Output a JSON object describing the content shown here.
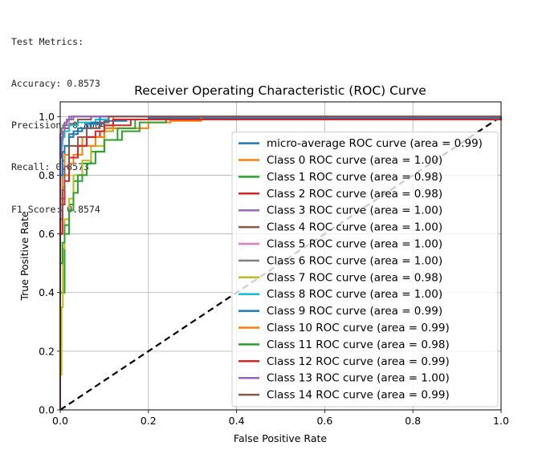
{
  "metrics": {
    "lines": [
      "Test Metrics:",
      "Accuracy: 0.8573",
      "Precision: 0.8604",
      "Recall: 0.8573",
      "F1 Score: 0.8574"
    ]
  },
  "chart_data": {
    "type": "line",
    "title": "Receiver Operating Characteristic (ROC) Curve",
    "xlabel": "False Positive Rate",
    "ylabel": "True Positive Rate",
    "xlim": [
      0.0,
      1.0
    ],
    "ylim": [
      0.0,
      1.05
    ],
    "xticks": [
      "0.0",
      "0.2",
      "0.4",
      "0.6",
      "0.8",
      "1.0"
    ],
    "yticks": [
      "0.0",
      "0.2",
      "0.4",
      "0.6",
      "0.8",
      "1.0"
    ],
    "grid": true,
    "legend_position": "lower-right",
    "diagonal": {
      "style": "dashed",
      "color": "#000000",
      "x": [
        0,
        1
      ],
      "y": [
        0,
        1
      ]
    },
    "series": [
      {
        "name": "micro-average ROC curve (area = 0.99)",
        "color": "#1f77b4",
        "x": [
          0,
          0,
          0.005,
          0.01,
          0.02,
          0.04,
          0.06,
          0.1,
          0.15,
          0.2,
          1.0
        ],
        "y": [
          0,
          0.68,
          0.85,
          0.9,
          0.94,
          0.96,
          0.975,
          0.985,
          0.99,
          0.995,
          1.0
        ]
      },
      {
        "name": "Class 0 ROC curve (area = 1.00)",
        "color": "#ff7f0e",
        "x": [
          0,
          0,
          0.005,
          0.01,
          0.02,
          0.05,
          0.1,
          0.2,
          0.25,
          0.32,
          0.32,
          1.0
        ],
        "y": [
          0,
          0.72,
          0.8,
          0.87,
          0.9,
          0.93,
          0.96,
          0.98,
          0.985,
          0.985,
          1.0,
          1.0
        ]
      },
      {
        "name": "Class 1 ROC curve (area = 0.98)",
        "color": "#2ca02c",
        "x": [
          0,
          0,
          0.01,
          0.02,
          0.03,
          0.05,
          0.07,
          0.1,
          0.14,
          0.18,
          0.24,
          1.0
        ],
        "y": [
          0,
          0.4,
          0.6,
          0.7,
          0.78,
          0.84,
          0.88,
          0.92,
          0.95,
          0.98,
          0.99,
          1.0
        ]
      },
      {
        "name": "Class 2 ROC curve (area = 0.98)",
        "color": "#d62728",
        "x": [
          0,
          0,
          0.005,
          0.01,
          0.02,
          0.04,
          0.06,
          0.09,
          0.12,
          0.16,
          1.0
        ],
        "y": [
          0,
          0.6,
          0.72,
          0.8,
          0.86,
          0.9,
          0.93,
          0.95,
          0.97,
          0.99,
          1.0
        ]
      },
      {
        "name": "Class 3 ROC curve (area = 1.00)",
        "color": "#9467bd",
        "x": [
          0,
          0,
          0.003,
          0.006,
          0.01,
          0.015,
          0.02,
          1.0
        ],
        "y": [
          0,
          0.88,
          0.92,
          0.95,
          0.97,
          0.985,
          1.0,
          1.0
        ]
      },
      {
        "name": "Class 4 ROC curve (area = 1.00)",
        "color": "#8c564b",
        "x": [
          0,
          0,
          0.003,
          0.006,
          0.01,
          0.02,
          0.04,
          0.07,
          1.0
        ],
        "y": [
          0,
          0.86,
          0.92,
          0.94,
          0.96,
          0.975,
          0.99,
          1.0,
          1.0
        ]
      },
      {
        "name": "Class 5 ROC curve (area = 1.00)",
        "color": "#e377c2",
        "x": [
          0,
          0,
          0.003,
          0.006,
          0.01,
          0.02,
          0.03,
          1.0
        ],
        "y": [
          0,
          0.9,
          0.93,
          0.95,
          0.97,
          0.99,
          1.0,
          1.0
        ]
      },
      {
        "name": "Class 6 ROC curve (area = 1.00)",
        "color": "#7f7f7f",
        "x": [
          0,
          0,
          0.003,
          0.006,
          0.01,
          0.015,
          0.03,
          1.0
        ],
        "y": [
          0,
          0.94,
          0.96,
          0.97,
          0.98,
          0.99,
          1.0,
          1.0
        ]
      },
      {
        "name": "Class 7 ROC curve (area = 0.98)",
        "color": "#bcbd22",
        "x": [
          0,
          0,
          0.003,
          0.006,
          0.01,
          0.02,
          0.03,
          0.05,
          0.07,
          0.1,
          0.12,
          1.0
        ],
        "y": [
          0,
          0.12,
          0.35,
          0.55,
          0.65,
          0.72,
          0.8,
          0.85,
          0.9,
          0.95,
          1.0,
          1.0
        ]
      },
      {
        "name": "Class 8 ROC curve (area = 1.00)",
        "color": "#17becf",
        "x": [
          0,
          0,
          0.005,
          0.01,
          0.02,
          0.04,
          0.08,
          0.11,
          1.0
        ],
        "y": [
          0,
          0.9,
          0.93,
          0.95,
          0.97,
          0.98,
          0.99,
          1.0,
          1.0
        ]
      },
      {
        "name": "Class 9 ROC curve (area = 0.99)",
        "color": "#1f77b4",
        "x": [
          0,
          0,
          0.005,
          0.01,
          0.02,
          0.03,
          0.05,
          0.07,
          0.09,
          1.0
        ],
        "y": [
          0,
          0.8,
          0.88,
          0.9,
          0.93,
          0.95,
          0.96,
          0.98,
          1.0,
          1.0
        ]
      },
      {
        "name": "Class 10 ROC curve (area = 0.99)",
        "color": "#ff7f0e",
        "x": [
          0,
          0,
          0.005,
          0.01,
          0.02,
          0.03,
          0.05,
          0.08,
          0.1,
          0.12,
          1.0
        ],
        "y": [
          0,
          0.7,
          0.76,
          0.8,
          0.84,
          0.87,
          0.9,
          0.93,
          0.96,
          1.0,
          1.0
        ]
      },
      {
        "name": "Class 11 ROC curve (area = 0.98)",
        "color": "#2ca02c",
        "x": [
          0,
          0,
          0.005,
          0.01,
          0.02,
          0.03,
          0.04,
          0.06,
          0.08,
          0.1,
          0.13,
          0.17,
          1.0
        ],
        "y": [
          0,
          0.5,
          0.57,
          0.63,
          0.68,
          0.74,
          0.8,
          0.84,
          0.88,
          0.92,
          0.96,
          0.99,
          1.0
        ]
      },
      {
        "name": "Class 12 ROC curve (area = 0.99)",
        "color": "#d62728",
        "x": [
          0,
          0,
          0.005,
          0.01,
          0.02,
          0.04,
          0.06,
          0.08,
          0.1,
          0.12,
          1.0
        ],
        "y": [
          0,
          0.6,
          0.7,
          0.78,
          0.86,
          0.9,
          0.93,
          0.95,
          0.97,
          0.99,
          1.0
        ]
      },
      {
        "name": "Class 13 ROC curve (area = 1.00)",
        "color": "#9467bd",
        "x": [
          0,
          0,
          0.003,
          0.006,
          0.01,
          0.015,
          0.025,
          1.0
        ],
        "y": [
          0,
          0.88,
          0.93,
          0.95,
          0.97,
          0.99,
          1.0,
          1.0
        ]
      },
      {
        "name": "Class 14 ROC curve (area = 0.99)",
        "color": "#8c564b",
        "x": [
          0,
          0,
          0.005,
          0.01,
          0.02,
          0.04,
          0.06,
          0.09,
          0.11,
          1.0
        ],
        "y": [
          0,
          0.65,
          0.75,
          0.83,
          0.9,
          0.93,
          0.96,
          0.98,
          1.0,
          1.0
        ]
      }
    ]
  }
}
